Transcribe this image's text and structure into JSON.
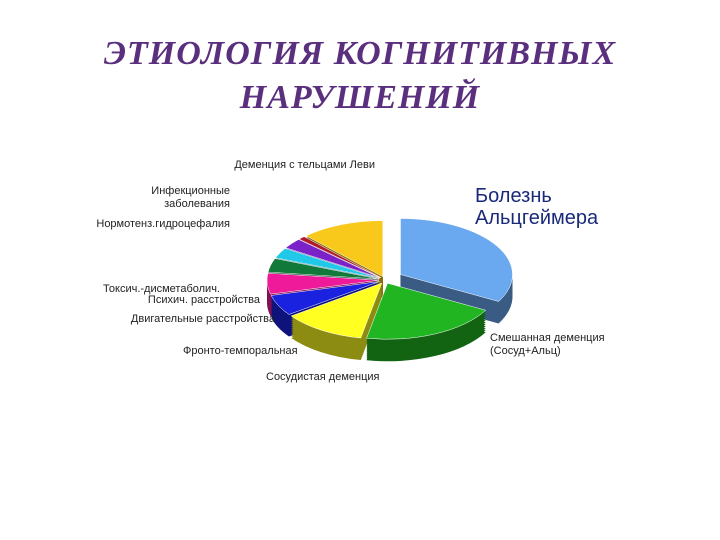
{
  "chart_data": {
    "type": "pie",
    "title": "ЭТИОЛОГИЯ КОГНИТИВНЫХ НАРУШЕНИЙ",
    "categories": [
      "Болезнь Альцгеймера",
      "Смешанная деменция (Сосуд+Альц)",
      "Сосудистая деменция",
      "Фронто-темпоральная",
      "Двигательные расстройства",
      "Психич. расстройства",
      "Токсич.-дисметаболич.",
      "Нормотенз.гидроцефалия",
      "Инфекционные заболевания",
      "Деменция с тельцами Леви"
    ],
    "values": [
      33,
      20,
      12,
      6,
      6,
      4,
      3,
      3,
      1,
      12
    ],
    "colors": [
      "#6aa8f0",
      "#22b522",
      "#ffff22",
      "#1a22e0",
      "#ee1a9a",
      "#117a3a",
      "#22c8e8",
      "#7a22c8",
      "#b01a2a",
      "#f8c81a"
    ]
  }
}
